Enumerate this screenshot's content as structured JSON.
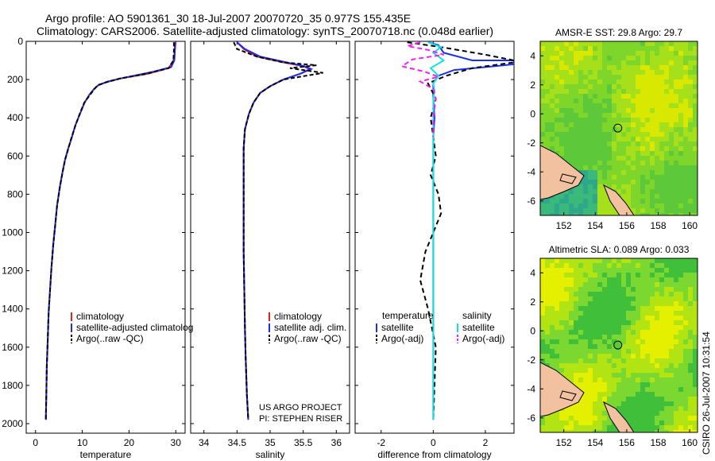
{
  "figure": {
    "title_line1": "Argo profile: AO 5901361_30 18-Jul-2007 20070720_35 0.977S 155.435E",
    "title_line2": "Climatology: CARS2006. Satellite-adjusted climatology: synTS_20070718.nc (0.048d earlier)",
    "project_line1": "US ARGO PROJECT",
    "project_line2": "PI: STEPHEN RISER",
    "footer_rotated": "CSIRO 26-Jul-2007 10:31:54"
  },
  "colors": {
    "climatology": "#e0241b",
    "satellite": "#1b30e6",
    "argo": "#000000",
    "sal_satellite": "#14e0e0",
    "sal_argo": "#ee22ee"
  },
  "chart_data": [
    {
      "type": "line",
      "xlabel": "temperature",
      "ylim": [
        2050,
        0
      ],
      "xlim": [
        -2,
        32
      ],
      "yticks": [
        0,
        200,
        400,
        600,
        800,
        1000,
        1200,
        1400,
        1600,
        1800,
        2000
      ],
      "xticks": [
        0,
        10,
        20,
        30
      ],
      "legend": [
        "climatology",
        "satellite-adjusted climatolog",
        "Argo(..raw -QC)"
      ],
      "series": [
        {
          "name": "climatology",
          "color": "climatology",
          "dash": "",
          "x": [
            30,
            29.8,
            29.5,
            28.5,
            24,
            18,
            15,
            13.4,
            12.5,
            11.5,
            10.5,
            9.5,
            8.5,
            7.8,
            7,
            6.3,
            5.8,
            5.2,
            4.6,
            4.2,
            3.8,
            3.4,
            3.1,
            2.8,
            2.6,
            2.4,
            2.3,
            2.2
          ],
          "y": [
            5,
            50,
            100,
            140,
            170,
            195,
            215,
            230,
            250,
            280,
            320,
            380,
            440,
            500,
            560,
            620,
            680,
            760,
            860,
            960,
            1060,
            1180,
            1300,
            1420,
            1560,
            1700,
            1850,
            1980
          ]
        },
        {
          "name": "satellite-adjusted climatolog",
          "color": "satellite",
          "dash": "",
          "x": [
            29.8,
            29.8,
            29.7,
            29,
            25,
            19,
            15.5,
            13.5,
            12.5,
            11.5,
            10.5,
            9.5,
            8.5,
            7.8,
            7,
            6.3,
            5.8,
            5.2,
            4.6,
            4.2,
            3.8,
            3.4,
            3.1,
            2.8,
            2.6,
            2.4,
            2.3,
            2.2
          ],
          "y": [
            5,
            50,
            100,
            135,
            160,
            190,
            210,
            228,
            250,
            280,
            320,
            380,
            440,
            500,
            560,
            620,
            680,
            760,
            860,
            960,
            1060,
            1180,
            1300,
            1420,
            1560,
            1700,
            1850,
            1980
          ]
        },
        {
          "name": "Argo(..raw -QC)",
          "color": "argo",
          "dash": "5,3",
          "x": [
            29.6,
            29.6,
            29.5,
            28.5,
            24,
            18,
            15,
            13.3,
            12.5,
            11.6,
            10.4,
            9.4,
            8.5,
            7.7,
            7,
            6.3,
            5.8,
            5.2,
            4.6,
            4.2,
            3.8,
            3.4,
            3.1,
            2.8,
            2.6,
            2.4,
            2.3,
            2.2
          ],
          "y": [
            5,
            50,
            100,
            140,
            168,
            195,
            215,
            230,
            252,
            282,
            322,
            382,
            442,
            502,
            562,
            622,
            682,
            762,
            862,
            962,
            1062,
            1182,
            1302,
            1422,
            1562,
            1702,
            1852,
            1982
          ]
        }
      ]
    },
    {
      "type": "line",
      "xlabel": "salinity",
      "ylim": [
        2050,
        0
      ],
      "xlim": [
        33.8,
        36.2
      ],
      "xticks": [
        34,
        34.5,
        35,
        35.5,
        36
      ],
      "legend": [
        "climatology",
        "satellite adj. clim.",
        "Argo(..raw -QC)"
      ],
      "series": [
        {
          "name": "climatology",
          "color": "climatology",
          "dash": "",
          "x": [
            34.5,
            34.6,
            34.8,
            35.2,
            35.5,
            35.6,
            35.45,
            35.2,
            35.0,
            34.85,
            34.75,
            34.68,
            34.62,
            34.6,
            34.6,
            34.6,
            34.6,
            34.61,
            34.62,
            34.63,
            34.64,
            34.65,
            34.66,
            34.67
          ],
          "y": [
            5,
            40,
            80,
            110,
            130,
            145,
            170,
            200,
            235,
            270,
            320,
            380,
            460,
            560,
            700,
            900,
            1100,
            1300,
            1500,
            1650,
            1750,
            1850,
            1920,
            1980
          ]
        },
        {
          "name": "satellite adj. clim.",
          "color": "satellite",
          "dash": "",
          "x": [
            34.5,
            34.62,
            34.85,
            35.25,
            35.52,
            35.62,
            35.45,
            35.2,
            35.0,
            34.85,
            34.75,
            34.68,
            34.62,
            34.6,
            34.6,
            34.6,
            34.6,
            34.61,
            34.62,
            34.63,
            34.64,
            34.65,
            34.66,
            34.67
          ],
          "y": [
            5,
            40,
            80,
            110,
            130,
            145,
            170,
            200,
            235,
            270,
            320,
            380,
            460,
            560,
            700,
            900,
            1100,
            1300,
            1500,
            1650,
            1750,
            1850,
            1920,
            1980
          ]
        },
        {
          "name": "Argo(..raw -QC)",
          "color": "argo",
          "dash": "5,3",
          "x": [
            34.45,
            34.5,
            34.8,
            35.2,
            35.7,
            35.3,
            35.8,
            35.2,
            35.0,
            34.85,
            34.75,
            34.68,
            34.62,
            34.6,
            34.6,
            34.6,
            34.6,
            34.61,
            34.62,
            34.63,
            34.64,
            34.65,
            34.66,
            34.67
          ],
          "y": [
            5,
            40,
            80,
            110,
            125,
            140,
            165,
            200,
            235,
            270,
            320,
            380,
            460,
            560,
            700,
            900,
            1100,
            1300,
            1500,
            1650,
            1750,
            1850,
            1920,
            1980
          ]
        }
      ]
    },
    {
      "type": "line",
      "xlabel": "difference from climatology",
      "ylim": [
        2050,
        0
      ],
      "xlim": [
        -3,
        3.1
      ],
      "xticks": [
        -2,
        0,
        2
      ],
      "legend_groups": [
        {
          "title": "temperature",
          "items": [
            "satellite",
            "Argo(-adj)"
          ]
        },
        {
          "title": "salinity",
          "items": [
            "satellite",
            "Argo(-adj)"
          ]
        }
      ],
      "series": [
        {
          "name": "satellite",
          "group": "temperature",
          "color": "satellite",
          "dash": "",
          "x": [
            -0.2,
            0.2,
            0.4,
            1.5,
            3.1,
            3.1,
            0.8,
            0.2,
            0,
            0,
            0.05,
            0,
            0,
            0,
            0,
            0,
            0
          ],
          "y": [
            5,
            20,
            60,
            100,
            100,
            120,
            150,
            180,
            220,
            300,
            400,
            500,
            700,
            1000,
            1400,
            1700,
            1980
          ]
        },
        {
          "name": "Argo(-adj)",
          "group": "temperature",
          "color": "argo",
          "dash": "6,4",
          "x": [
            -1.0,
            0.3,
            2.0,
            3.1,
            3.1,
            1.5,
            0.5,
            -0.2,
            0.1,
            -0.1,
            0.0,
            0.1,
            -0.1,
            0.2,
            0.3,
            0,
            -0.3,
            -0.5,
            -0.2,
            0.1,
            0
          ],
          "y": [
            5,
            30,
            70,
            100,
            110,
            140,
            180,
            220,
            300,
            400,
            500,
            600,
            700,
            800,
            900,
            1000,
            1100,
            1250,
            1400,
            1600,
            1980
          ]
        },
        {
          "name": "satellite",
          "group": "salinity",
          "color": "sal_satellite",
          "dash": "",
          "x": [
            -0.2,
            0.3,
            0,
            0.4,
            -0.1,
            0.2,
            0,
            0.05,
            0,
            0,
            0,
            0,
            0,
            0
          ],
          "y": [
            5,
            30,
            60,
            100,
            140,
            180,
            220,
            260,
            300,
            400,
            600,
            1000,
            1500,
            1980
          ]
        },
        {
          "name": "Argo(-adj)",
          "group": "salinity",
          "color": "sal_argo",
          "dash": "6,4",
          "x": [
            -0.5,
            -1.0,
            -0.2,
            0.4,
            -0.8,
            -1.2,
            -0.3,
            0.2,
            -0.5,
            0,
            0.1,
            0,
            0
          ],
          "y": [
            5,
            25,
            45,
            70,
            95,
            130,
            160,
            185,
            210,
            250,
            300,
            400,
            500
          ]
        }
      ]
    }
  ],
  "maps": [
    {
      "title": "AMSR-E SST: 29.8 Argo: 29.7",
      "xticks": [
        152,
        154,
        156,
        158,
        160
      ],
      "yticks": [
        4,
        2,
        0,
        -2,
        -4,
        -6
      ],
      "xlim": [
        150.5,
        160.5
      ],
      "ylim": [
        -7,
        5
      ],
      "marker": [
        155.435,
        -0.977
      ]
    },
    {
      "title": "Altimetric SLA: 0.089 Argo: 0.033",
      "xticks": [
        152,
        154,
        156,
        158,
        160
      ],
      "yticks": [
        4,
        2,
        0,
        -2,
        -4,
        -6
      ],
      "xlim": [
        150.5,
        160.5
      ],
      "ylim": [
        -7,
        5
      ],
      "marker": [
        155.435,
        -0.977
      ]
    }
  ]
}
